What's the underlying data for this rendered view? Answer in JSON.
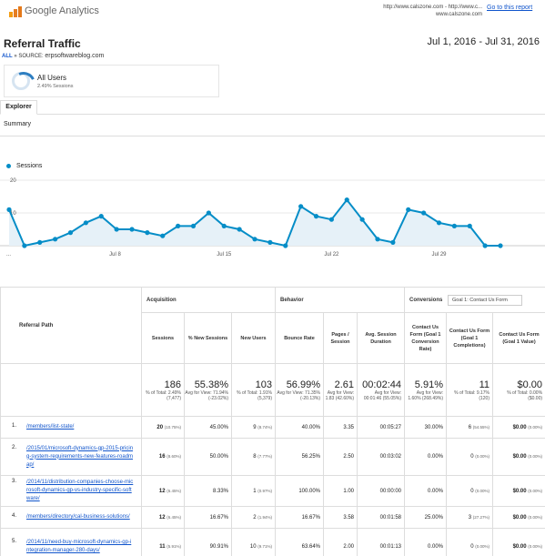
{
  "header": {
    "brand": "Google Analytics",
    "url_line1": "http://www.calszone.com - http://www.c...",
    "url_line2": "www.calszone.com",
    "goto_link": "Go to this report"
  },
  "report": {
    "title": "Referral Traffic",
    "date_range": "Jul 1, 2016 - Jul 31, 2016",
    "breadcrumb_all": "ALL",
    "breadcrumb_sep": "»",
    "breadcrumb_source_label": "SOURCE:",
    "breadcrumb_source_value": "erpsoftwareblog.com"
  },
  "segment": {
    "name": "All Users",
    "sub": "2.49% Sessions"
  },
  "tabs": {
    "explorer": "Explorer",
    "summary": "Summary"
  },
  "chart_data": {
    "type": "area",
    "series": [
      {
        "name": "Sessions",
        "color": "#058dc7",
        "values": [
          11,
          0,
          1,
          2,
          4,
          7,
          9,
          5,
          5,
          4,
          3,
          6,
          6,
          10,
          6,
          5,
          2,
          1,
          0,
          12,
          9,
          8,
          14,
          8,
          2,
          1,
          11,
          10,
          7,
          6,
          6,
          0,
          0
        ]
      }
    ],
    "x_ticks": [
      "...",
      "Jul 8",
      "Jul 15",
      "Jul 22",
      "Jul 29"
    ],
    "y_ticks": [
      "20",
      "10"
    ],
    "ylim": [
      0,
      20
    ],
    "grid": true
  },
  "table": {
    "group_headers": {
      "referral_path": "Referral Path",
      "acquisition": "Acquisition",
      "behavior": "Behavior",
      "conversions": "Conversions",
      "goal_select": "Goal 1: Contact Us Form"
    },
    "col_headers": [
      "Sessions",
      "% New Sessions",
      "New Users",
      "Bounce Rate",
      "Pages / Session",
      "Avg. Session Duration",
      "Contact Us Form (Goal 1 Conversion Rate)",
      "Contact Us Form (Goal 1 Completions)",
      "Contact Us Form (Goal 1 Value)"
    ],
    "totals": [
      {
        "big": "186",
        "small": "% of Total: 2.49% (7,477)"
      },
      {
        "big": "55.38%",
        "small": "Avg for View: 71.94% (-23.02%)"
      },
      {
        "big": "103",
        "small": "% of Total: 1.91% (5,379)"
      },
      {
        "big": "56.99%",
        "small": "Avg for View: 71.35% (-20.13%)"
      },
      {
        "big": "2.61",
        "small": "Avg for View: 1.83 (42.60%)"
      },
      {
        "big": "00:02:44",
        "small": "Avg for View: 00:01:46 (55.05%)"
      },
      {
        "big": "5.91%",
        "small": "Avg for View: 1.60% (268.49%)"
      },
      {
        "big": "11",
        "small": "% of Total: 9.17% (120)"
      },
      {
        "big": "$0.00",
        "small": "% of Total: 0.00% ($0.00)"
      }
    ],
    "rows": [
      {
        "idx": "1.",
        "path": "/members/list-state/",
        "sessions": "20",
        "sessions_pct": "(10.75%)",
        "new_sessions": "45.00%",
        "new_users": "9",
        "new_users_pct": "(8.74%)",
        "bounce": "40.00%",
        "pages": "3.35",
        "duration": "00:05:27",
        "conv_rate": "30.00%",
        "completions": "6",
        "completions_pct": "(54.55%)",
        "value": "$0.00",
        "value_pct": "(0.00%)"
      },
      {
        "idx": "2.",
        "path": "/2015/01/microsoft-dynamics-gp-2015-pricing-system-requirements-new-features-roadmap/",
        "sessions": "16",
        "sessions_pct": "(8.60%)",
        "new_sessions": "50.00%",
        "new_users": "8",
        "new_users_pct": "(7.77%)",
        "bounce": "56.25%",
        "pages": "2.50",
        "duration": "00:03:02",
        "conv_rate": "0.00%",
        "completions": "0",
        "completions_pct": "(0.00%)",
        "value": "$0.00",
        "value_pct": "(0.00%)"
      },
      {
        "idx": "3.",
        "path": "/2014/11/distribution-companies-choose-microsoft-dynamics-gp-vs-industry-specific-software/",
        "sessions": "12",
        "sessions_pct": "(6.45%)",
        "new_sessions": "8.33%",
        "new_users": "1",
        "new_users_pct": "(0.97%)",
        "bounce": "100.00%",
        "pages": "1.00",
        "duration": "00:00:00",
        "conv_rate": "0.00%",
        "completions": "0",
        "completions_pct": "(0.00%)",
        "value": "$0.00",
        "value_pct": "(0.00%)"
      },
      {
        "idx": "4.",
        "path": "/members/directory/cal-business-solutions/",
        "sessions": "12",
        "sessions_pct": "(6.45%)",
        "new_sessions": "16.67%",
        "new_users": "2",
        "new_users_pct": "(1.94%)",
        "bounce": "16.67%",
        "pages": "3.58",
        "duration": "00:01:58",
        "conv_rate": "25.00%",
        "completions": "3",
        "completions_pct": "(27.27%)",
        "value": "$0.00",
        "value_pct": "(0.00%)"
      },
      {
        "idx": "5.",
        "path": "/2014/11/need-buy-microsoft-dynamics-gp-integration-manager-280-days/",
        "sessions": "11",
        "sessions_pct": "(5.91%)",
        "new_sessions": "90.91%",
        "new_users": "10",
        "new_users_pct": "(9.71%)",
        "bounce": "63.64%",
        "pages": "2.00",
        "duration": "00:01:13",
        "conv_rate": "0.00%",
        "completions": "0",
        "completions_pct": "(0.00%)",
        "value": "$0.00",
        "value_pct": "(0.00%)"
      }
    ]
  }
}
